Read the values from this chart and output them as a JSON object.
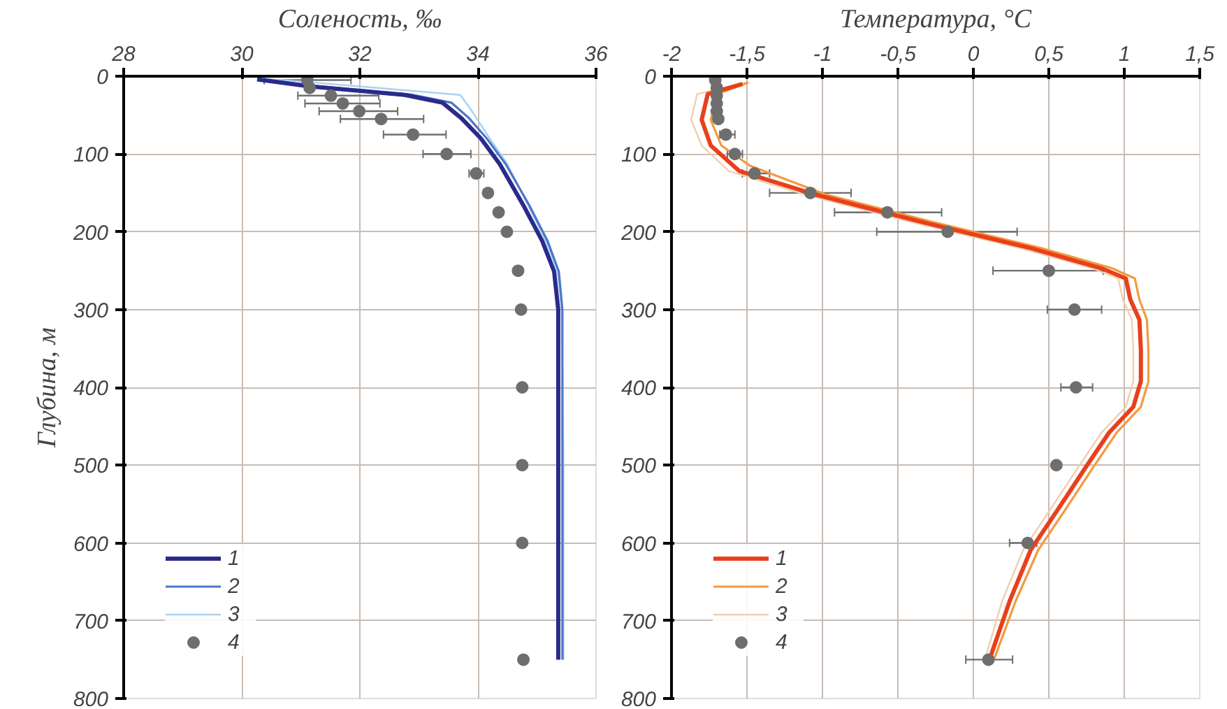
{
  "chart_data": [
    {
      "type": "line",
      "xlabel": "Соленость, ‰",
      "ylabel": "Глубина, м",
      "xlim": [
        28,
        36
      ],
      "xticks": [
        28,
        30,
        32,
        34,
        36
      ],
      "ylim": [
        800,
        0
      ],
      "yticks": [
        0,
        100,
        200,
        300,
        400,
        500,
        600,
        700,
        800
      ],
      "grid": true,
      "legend": "bottom left",
      "line_style": "solid",
      "series": [
        {
          "name": "3",
          "color": "#a9d2f0",
          "x": [
            30.4,
            31.5,
            33.7,
            33.9,
            34.2,
            34.5,
            34.85,
            35.15,
            35.35,
            35.42,
            35.45,
            35.45
          ],
          "values": [
            3,
            10,
            24,
            45,
            80,
            113,
            166,
            212,
            251,
            300,
            500,
            750
          ]
        },
        {
          "name": "2",
          "color": "#4a78c8",
          "x": [
            30.3,
            31.3,
            32.9,
            33.55,
            33.85,
            34.15,
            34.47,
            34.87,
            35.18,
            35.37,
            35.43,
            35.43
          ],
          "values": [
            4,
            13,
            24,
            34,
            54,
            80,
            113,
            166,
            212,
            251,
            300,
            750
          ]
        },
        {
          "name": "1",
          "color": "#2b2a8c",
          "x": [
            30.26,
            31.15,
            32.76,
            33.4,
            33.72,
            34.05,
            34.37,
            34.77,
            35.09,
            35.29,
            35.36,
            35.36
          ],
          "values": [
            4,
            13,
            24,
            34,
            54,
            80,
            113,
            166,
            212,
            251,
            300,
            750
          ]
        },
        {
          "name": "4",
          "type": "scatter",
          "marker": "circle",
          "color": "#6e6e6e",
          "x": [
            31.11,
            31.15,
            31.51,
            31.71,
            31.99,
            32.36,
            32.9,
            33.47,
            33.97,
            34.17,
            34.35,
            34.49,
            34.68,
            34.73,
            34.75,
            34.75,
            34.75,
            34.77
          ],
          "values": [
            5,
            15,
            25,
            35,
            45,
            55,
            75,
            100,
            125,
            150,
            175,
            200,
            250,
            300,
            400,
            500,
            600,
            750
          ],
          "xerrors": [
            [
              30.38,
              31.85
            ],
            null,
            [
              30.95,
              32.32
            ],
            [
              31.07,
              32.34
            ],
            [
              31.31,
              32.64
            ],
            [
              31.67,
              33.08
            ],
            [
              32.4,
              33.46
            ],
            [
              33.07,
              33.88
            ],
            [
              33.85,
              34.1
            ],
            null,
            null,
            null,
            null,
            null,
            null,
            null,
            null,
            null
          ]
        }
      ]
    },
    {
      "type": "line",
      "xlabel": "Температура, °C",
      "xlim": [
        -2,
        1.5
      ],
      "xticks": [
        -2,
        {
          "value": -1.5,
          "label": "-1,5"
        },
        -1,
        {
          "value": -0.5,
          "label": "-0,5"
        },
        0,
        {
          "value": 0.5,
          "label": "0,5"
        },
        1,
        {
          "value": 1.5,
          "label": "1,5"
        }
      ],
      "ylim": [
        800,
        0
      ],
      "yticks": [
        0,
        100,
        200,
        300,
        400,
        500,
        600,
        700,
        800
      ],
      "grid": true,
      "legend": "bottom left",
      "line_style": "solid",
      "series": [
        {
          "name": "3",
          "color": "#f0cfae",
          "x": [
            -1.5,
            -1.83,
            -1.87,
            -1.8,
            -1.62,
            -1.12,
            -0.4,
            0.31,
            0.79,
            0.96,
            0.99,
            1.05,
            1.06,
            1.06,
            1.01,
            0.85,
            0.69,
            0.51,
            0.33,
            0.19,
            0.08
          ],
          "values": [
            8,
            23,
            56,
            89,
            122,
            152,
            188,
            221,
            247,
            260,
            287,
            313,
            352,
            392,
            425,
            458,
            504,
            557,
            609,
            675,
            748
          ]
        },
        {
          "name": "2",
          "color": "#f39a3c",
          "x": [
            -1.49,
            -1.7,
            -1.74,
            -1.67,
            -1.48,
            -0.98,
            -0.26,
            0.45,
            0.92,
            1.07,
            1.1,
            1.15,
            1.16,
            1.16,
            1.11,
            0.95,
            0.79,
            0.61,
            0.43,
            0.28,
            0.14
          ],
          "values": [
            8,
            23,
            56,
            89,
            115,
            152,
            188,
            221,
            247,
            260,
            287,
            313,
            352,
            392,
            425,
            458,
            504,
            557,
            609,
            675,
            748
          ]
        },
        {
          "name": "1",
          "color": "#e8401c",
          "x": [
            -1.53,
            -1.76,
            -1.8,
            -1.74,
            -1.55,
            -1.05,
            -0.33,
            0.38,
            0.85,
            1.01,
            1.04,
            1.1,
            1.11,
            1.11,
            1.06,
            0.9,
            0.74,
            0.56,
            0.38,
            0.24,
            0.11
          ],
          "values": [
            10,
            23,
            56,
            89,
            122,
            152,
            188,
            221,
            247,
            260,
            287,
            313,
            352,
            392,
            425,
            458,
            504,
            557,
            609,
            675,
            748
          ]
        },
        {
          "name": "4",
          "type": "scatter",
          "marker": "circle",
          "color": "#6e6e6e",
          "x": [
            -1.71,
            -1.7,
            -1.7,
            -1.7,
            -1.7,
            -1.69,
            -1.64,
            -1.58,
            -1.45,
            -1.08,
            -0.57,
            -0.17,
            0.5,
            0.67,
            0.68,
            0.55,
            0.36,
            0.1
          ],
          "values": [
            5,
            15,
            25,
            35,
            45,
            55,
            75,
            100,
            125,
            150,
            175,
            200,
            250,
            300,
            400,
            500,
            600,
            750
          ],
          "xerrors": [
            null,
            null,
            null,
            null,
            null,
            null,
            [
              -1.68,
              -1.58
            ],
            [
              -1.63,
              -1.53
            ],
            [
              -1.53,
              -1.35
            ],
            [
              -1.35,
              -0.81
            ],
            [
              -0.92,
              -0.21
            ],
            [
              -0.64,
              0.29
            ],
            [
              0.13,
              0.86
            ],
            [
              0.49,
              0.85
            ],
            [
              0.58,
              0.79
            ],
            null,
            [
              0.24,
              0.42
            ],
            [
              -0.05,
              0.26
            ]
          ]
        }
      ]
    }
  ]
}
